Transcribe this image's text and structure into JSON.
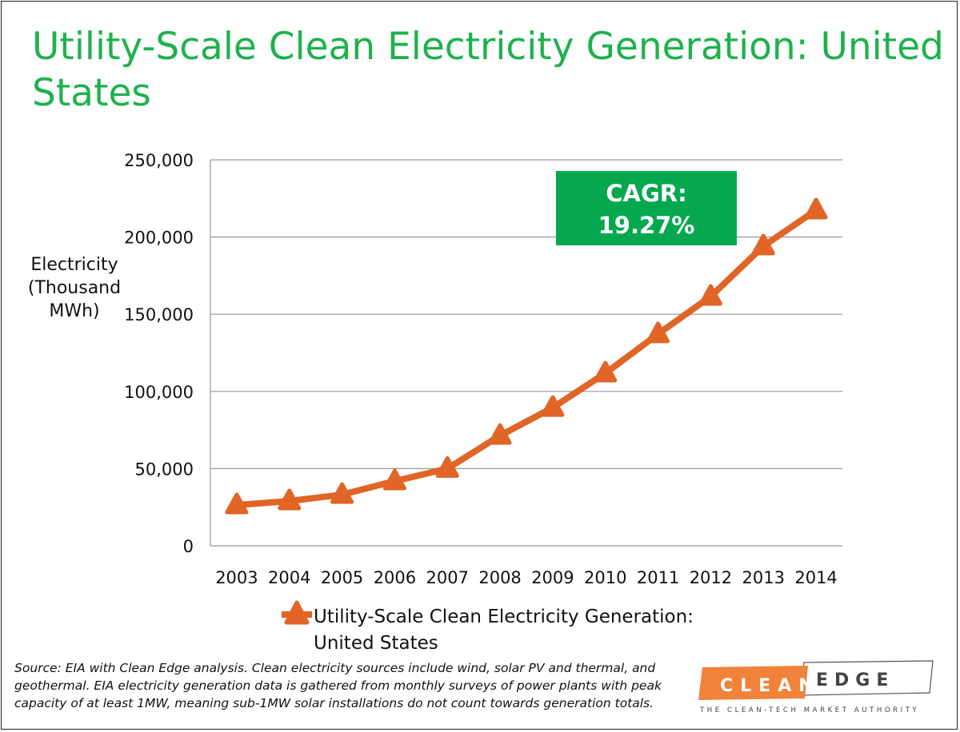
{
  "title": "Utility-Scale Clean Electricity Generation: United States",
  "chart_data": {
    "type": "line",
    "title": "Utility-Scale Clean Electricity Generation: United States",
    "ylabel": "Electricity (Thousand MWh)",
    "xlabel": "",
    "categories": [
      "2003",
      "2004",
      "2005",
      "2006",
      "2007",
      "2008",
      "2009",
      "2010",
      "2011",
      "2012",
      "2013",
      "2014"
    ],
    "series": [
      {
        "name": "Utility-Scale Clean Electricity Generation: United States",
        "values": [
          26400,
          29000,
          33100,
          41900,
          50000,
          71400,
          89500,
          111800,
          137200,
          161500,
          194100,
          217400
        ],
        "color": "#e06526",
        "marker": "triangle"
      }
    ],
    "ylim": [
      0,
      250000
    ],
    "yticks": [
      0,
      50000,
      100000,
      150000,
      200000,
      250000
    ],
    "ytick_labels": [
      "0",
      "50,000",
      "100,000",
      "150,000",
      "200,000",
      "250,000"
    ],
    "grid": true,
    "legend_position": "bottom",
    "annotation": {
      "line1": "CAGR:",
      "line2": "19.27%",
      "color": "#05a84f"
    }
  },
  "source_note": "Source: EIA with Clean Edge analysis. Clean electricity sources include wind, solar PV and thermal, and geothermal. EIA electricity generation data is gathered from monthly surveys of power plants with peak capacity of at least 1MW, meaning sub-1MW solar installations do not count towards generation totals.",
  "logo": {
    "word1": "CLEAN",
    "word2": "EDGE",
    "tagline": "THE CLEAN-TECH MARKET AUTHORITY",
    "accent": "#f0823a"
  }
}
